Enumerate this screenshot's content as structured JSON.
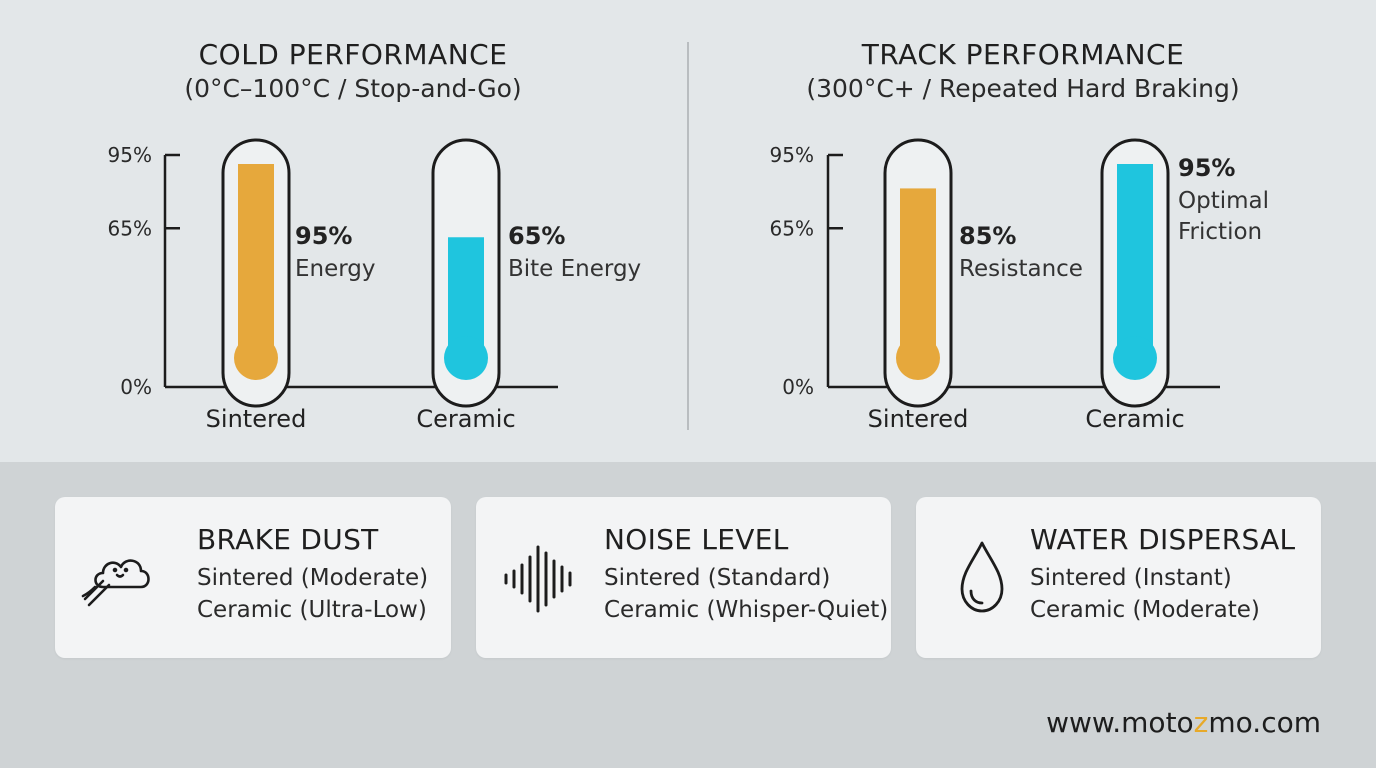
{
  "colors": {
    "sintered": "#e6a83c",
    "ceramic": "#1fc5de",
    "outline": "#1c1c1c",
    "accent_z": "#e7a92a"
  },
  "chart_data": [
    {
      "type": "bar",
      "title": "COLD PERFORMANCE",
      "subtitle": "(0°C–100°C / Stop-and-Go)",
      "categories": [
        "Sintered",
        "Ceramic"
      ],
      "values": [
        95,
        65
      ],
      "ticks": [
        "95%",
        "65%",
        "0%"
      ],
      "tick_values": [
        95,
        65,
        0
      ],
      "bar_labels": [
        {
          "pct": "95%",
          "lines": [
            "Energy"
          ]
        },
        {
          "pct": "65%",
          "lines": [
            "Bite Energy"
          ]
        }
      ]
    },
    {
      "type": "bar",
      "title": "TRACK PERFORMANCE",
      "subtitle": "(300°C+ / Repeated Hard Braking)",
      "categories": [
        "Sintered",
        "Ceramic"
      ],
      "values": [
        85,
        95
      ],
      "ticks": [
        "95%",
        "65%",
        "0%"
      ],
      "tick_values": [
        95,
        65,
        0
      ],
      "bar_labels": [
        {
          "pct": "85%",
          "lines": [
            "Resistance"
          ]
        },
        {
          "pct": "95%",
          "lines": [
            "Optimal",
            "Friction"
          ]
        }
      ]
    }
  ],
  "cards": [
    {
      "title": "BRAKE DUST",
      "line1": "Sintered (Moderate)",
      "line2": "Ceramic (Ultra-Low)",
      "icon": "dust-cloud-icon"
    },
    {
      "title": "NOISE LEVEL",
      "line1": "Sintered (Standard)",
      "line2": "Ceramic (Whisper-Quiet)",
      "icon": "sound-wave-icon"
    },
    {
      "title": "WATER DISPERSAL",
      "line1": "Sintered (Instant)",
      "line2": "Ceramic (Moderate)",
      "icon": "water-drop-icon"
    }
  ],
  "footer": {
    "pre": "www.moto",
    "z": "z",
    "post": "mo.com"
  }
}
